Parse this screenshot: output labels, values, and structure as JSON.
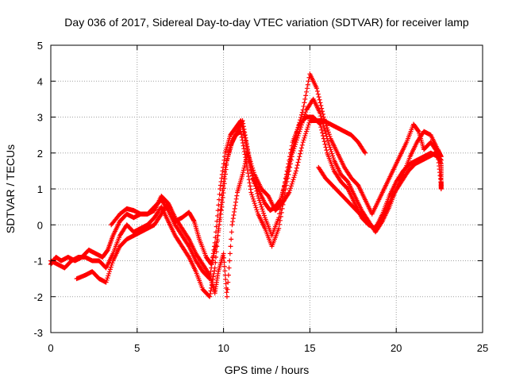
{
  "chart_data": {
    "type": "scatter",
    "title": "Day 036 of 2017, Sidereal Day-to-day VTEC variation (SDTVAR) for receiver lamp",
    "xlabel": "GPS time / hours",
    "ylabel": "SDTVAR / TECUs",
    "xlim": [
      0,
      25
    ],
    "ylim": [
      -3,
      5
    ],
    "xticks": [
      0,
      5,
      10,
      15,
      20,
      25
    ],
    "yticks": [
      -3,
      -2,
      -1,
      0,
      1,
      2,
      3,
      4,
      5
    ],
    "grid": true,
    "marker": "+",
    "color": "#ff0000",
    "series": [
      {
        "points": [
          [
            0,
            -1.1
          ],
          [
            0.3,
            -0.9
          ],
          [
            0.6,
            -1.0
          ],
          [
            1.0,
            -0.9
          ],
          [
            1.4,
            -1.0
          ],
          [
            1.8,
            -0.9
          ],
          [
            2.2,
            -0.7
          ],
          [
            2.6,
            -0.8
          ],
          [
            3.0,
            -0.9
          ],
          [
            3.3,
            -0.7
          ],
          [
            3.6,
            -0.3
          ],
          [
            4.0,
            0.1
          ],
          [
            4.4,
            0.3
          ],
          [
            4.8,
            0.2
          ],
          [
            5.2,
            0.3
          ],
          [
            5.6,
            0.3
          ],
          [
            6.0,
            0.5
          ],
          [
            6.4,
            0.7
          ],
          [
            6.8,
            0.4
          ],
          [
            7.2,
            0.0
          ],
          [
            7.6,
            -0.3
          ],
          [
            8.0,
            -0.6
          ],
          [
            8.4,
            -1.0
          ],
          [
            8.8,
            -1.3
          ],
          [
            9.2,
            -1.5
          ],
          [
            9.5,
            -0.5
          ],
          [
            9.8,
            1.0
          ],
          [
            10.1,
            2.0
          ],
          [
            10.4,
            2.5
          ],
          [
            10.7,
            2.7
          ],
          [
            11.0,
            2.9
          ],
          [
            11.3,
            2.3
          ],
          [
            11.6,
            1.5
          ],
          [
            12.0,
            0.8
          ],
          [
            12.4,
            0.2
          ],
          [
            12.8,
            -0.3
          ],
          [
            13.2,
            0.2
          ],
          [
            13.6,
            1.3
          ],
          [
            14.0,
            2.3
          ],
          [
            14.4,
            2.8
          ],
          [
            14.8,
            3.0
          ],
          [
            15.2,
            3.0
          ],
          [
            15.6,
            2.8
          ],
          [
            16.0,
            2.0
          ],
          [
            16.4,
            1.5
          ],
          [
            16.8,
            1.2
          ],
          [
            17.2,
            1.0
          ],
          [
            17.6,
            0.6
          ],
          [
            18.0,
            0.2
          ],
          [
            18.4,
            0.0
          ],
          [
            18.8,
            -0.1
          ],
          [
            19.2,
            0.3
          ],
          [
            19.6,
            0.8
          ],
          [
            20.0,
            1.2
          ],
          [
            20.4,
            1.5
          ],
          [
            20.8,
            1.7
          ],
          [
            21.2,
            1.8
          ],
          [
            21.6,
            1.9
          ],
          [
            22.0,
            2.0
          ],
          [
            22.4,
            1.9
          ],
          [
            22.6,
            1.8
          ]
        ]
      },
      {
        "points": [
          [
            0,
            -1.0
          ],
          [
            0.4,
            -1.1
          ],
          [
            0.8,
            -1.2
          ],
          [
            1.2,
            -1.0
          ],
          [
            1.6,
            -0.9
          ],
          [
            2.0,
            -0.9
          ],
          [
            2.4,
            -1.0
          ],
          [
            2.8,
            -1.0
          ],
          [
            3.2,
            -1.2
          ],
          [
            3.6,
            -0.8
          ],
          [
            4.0,
            -0.3
          ],
          [
            4.4,
            0.0
          ],
          [
            4.8,
            -0.2
          ],
          [
            5.2,
            -0.1
          ],
          [
            5.6,
            0.0
          ],
          [
            6.0,
            0.2
          ],
          [
            6.4,
            0.5
          ],
          [
            6.8,
            0.1
          ],
          [
            7.2,
            -0.3
          ],
          [
            7.6,
            -0.6
          ],
          [
            8.0,
            -0.9
          ],
          [
            8.4,
            -1.3
          ],
          [
            8.8,
            -1.8
          ],
          [
            9.2,
            -2.0
          ],
          [
            9.5,
            -1.2
          ],
          [
            9.8,
            0.3
          ],
          [
            10.1,
            1.6
          ],
          [
            10.4,
            2.2
          ],
          [
            10.7,
            2.5
          ],
          [
            11.0,
            2.6
          ],
          [
            11.3,
            1.8
          ],
          [
            11.6,
            0.9
          ],
          [
            12.0,
            0.3
          ],
          [
            12.4,
            -0.1
          ],
          [
            12.8,
            -0.6
          ],
          [
            13.2,
            -0.1
          ],
          [
            13.6,
            1.0
          ],
          [
            14.0,
            2.0
          ],
          [
            14.4,
            2.6
          ],
          [
            14.8,
            3.2
          ],
          [
            15.2,
            3.5
          ],
          [
            15.6,
            3.1
          ],
          [
            16.0,
            2.4
          ],
          [
            16.4,
            1.8
          ],
          [
            16.8,
            1.4
          ],
          [
            17.2,
            1.2
          ],
          [
            17.6,
            0.8
          ],
          [
            18.0,
            0.4
          ],
          [
            18.4,
            0.1
          ],
          [
            18.8,
            -0.2
          ],
          [
            19.2,
            0.1
          ],
          [
            19.6,
            0.5
          ],
          [
            20.0,
            1.0
          ],
          [
            20.4,
            1.4
          ],
          [
            20.8,
            1.9
          ],
          [
            21.2,
            2.3
          ],
          [
            21.6,
            2.6
          ],
          [
            22.0,
            2.5
          ],
          [
            22.4,
            2.1
          ],
          [
            22.6,
            1.9
          ]
        ]
      },
      {
        "points": [
          [
            1.5,
            -1.5
          ],
          [
            2.0,
            -1.4
          ],
          [
            2.4,
            -1.3
          ],
          [
            2.8,
            -1.5
          ],
          [
            3.2,
            -1.6
          ],
          [
            3.6,
            -1.0
          ],
          [
            4.0,
            -0.6
          ],
          [
            4.4,
            -0.4
          ],
          [
            4.8,
            -0.3
          ],
          [
            5.2,
            -0.2
          ],
          [
            5.6,
            -0.1
          ],
          [
            6.0,
            0.0
          ],
          [
            6.4,
            0.3
          ],
          [
            6.8,
            0.6
          ],
          [
            7.2,
            0.2
          ],
          [
            7.6,
            -0.1
          ],
          [
            8.0,
            -0.4
          ],
          [
            8.4,
            -0.8
          ],
          [
            8.8,
            -1.1
          ],
          [
            9.2,
            -1.4
          ],
          [
            9.5,
            -1.9
          ],
          [
            9.7,
            -1.3
          ],
          [
            10.0,
            -0.8
          ],
          [
            10.2,
            -2.0
          ],
          [
            10.5,
            0.0
          ],
          [
            10.8,
            0.9
          ],
          [
            11.1,
            1.4
          ],
          [
            11.4,
            2.0
          ],
          [
            11.8,
            1.4
          ],
          [
            12.2,
            1.0
          ],
          [
            12.6,
            0.8
          ],
          [
            13.0,
            0.4
          ],
          [
            13.4,
            0.6
          ],
          [
            13.8,
            0.9
          ],
          [
            14.2,
            1.5
          ],
          [
            14.6,
            2.3
          ],
          [
            15.0,
            2.9
          ],
          [
            15.4,
            2.9
          ],
          [
            15.8,
            2.9
          ],
          [
            16.2,
            2.8
          ],
          [
            16.6,
            2.7
          ],
          [
            17.0,
            2.6
          ],
          [
            17.4,
            2.5
          ],
          [
            17.8,
            2.3
          ],
          [
            18.2,
            2.0
          ]
        ]
      },
      {
        "points": [
          [
            3.5,
            0.0
          ],
          [
            4.0,
            0.3
          ],
          [
            4.4,
            0.45
          ],
          [
            4.8,
            0.4
          ],
          [
            5.2,
            0.3
          ],
          [
            5.6,
            0.3
          ],
          [
            6.0,
            0.4
          ],
          [
            6.4,
            0.8
          ],
          [
            6.8,
            0.6
          ],
          [
            7.2,
            0.1
          ],
          [
            7.6,
            0.2
          ],
          [
            8.0,
            0.35
          ],
          [
            8.3,
            0.1
          ],
          [
            8.6,
            -0.4
          ],
          [
            9.0,
            -0.9
          ],
          [
            9.3,
            -1.1
          ],
          [
            9.6,
            -0.5
          ],
          [
            9.9,
            0.5
          ],
          [
            10.2,
            1.8
          ],
          [
            10.5,
            2.3
          ],
          [
            10.8,
            2.6
          ],
          [
            11.1,
            2.9
          ],
          [
            11.4,
            2.1
          ],
          [
            11.7,
            1.3
          ],
          [
            12.0,
            1.0
          ],
          [
            12.4,
            0.6
          ],
          [
            12.7,
            0.4
          ],
          [
            13.0,
            0.5
          ],
          [
            13.3,
            0.7
          ],
          [
            13.6,
            1.2
          ],
          [
            13.9,
            1.9
          ],
          [
            14.2,
            2.5
          ],
          [
            14.6,
            3.2
          ],
          [
            15.0,
            4.2
          ],
          [
            15.4,
            3.8
          ],
          [
            15.8,
            3.0
          ],
          [
            16.2,
            2.4
          ],
          [
            16.6,
            2.0
          ],
          [
            17.0,
            1.6
          ],
          [
            17.4,
            1.3
          ],
          [
            17.8,
            1.1
          ],
          [
            18.2,
            0.7
          ],
          [
            18.6,
            0.3
          ],
          [
            19.0,
            0.7
          ],
          [
            19.4,
            1.1
          ],
          [
            19.8,
            1.5
          ],
          [
            20.2,
            1.9
          ],
          [
            20.6,
            2.3
          ],
          [
            21.0,
            2.8
          ],
          [
            21.3,
            2.6
          ],
          [
            21.6,
            2.1
          ],
          [
            22.0,
            2.3
          ],
          [
            22.4,
            2.0
          ],
          [
            22.6,
            1.1
          ]
        ]
      },
      {
        "points": [
          [
            15.5,
            1.6
          ],
          [
            15.9,
            1.3
          ],
          [
            16.3,
            1.1
          ],
          [
            16.7,
            0.9
          ],
          [
            17.1,
            0.7
          ],
          [
            17.5,
            0.5
          ],
          [
            17.9,
            0.3
          ],
          [
            18.3,
            0.1
          ],
          [
            18.7,
            -0.1
          ],
          [
            19.1,
            0.1
          ],
          [
            19.5,
            0.5
          ],
          [
            19.9,
            0.9
          ],
          [
            20.3,
            1.2
          ],
          [
            20.7,
            1.5
          ],
          [
            21.1,
            1.7
          ],
          [
            21.5,
            1.8
          ],
          [
            21.9,
            1.9
          ],
          [
            22.3,
            2.0
          ],
          [
            22.6,
            1.7
          ],
          [
            22.6,
            1.2
          ],
          [
            22.6,
            1.0
          ]
        ]
      }
    ]
  }
}
